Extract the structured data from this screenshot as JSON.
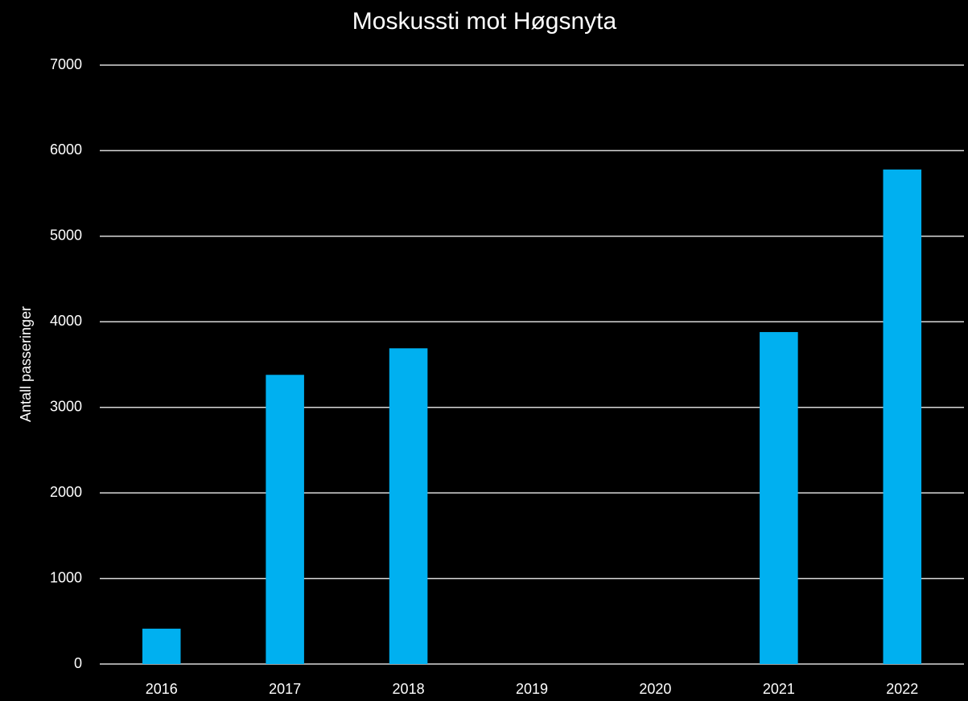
{
  "chart_data": {
    "type": "bar",
    "title": "Moskussti mot Høgsnyta",
    "y_label": "Antall passeringer",
    "categories": [
      "2016",
      "2017",
      "2018",
      "2019",
      "2020",
      "2021",
      "2022"
    ],
    "values": [
      413,
      3380,
      3690,
      null,
      null,
      3880,
      5780
    ],
    "color": "#00b0f0",
    "ylim": [
      0,
      7000
    ],
    "yticks": [
      0,
      1000,
      2000,
      3000,
      4000,
      5000,
      6000,
      7000
    ],
    "grid": true
  }
}
